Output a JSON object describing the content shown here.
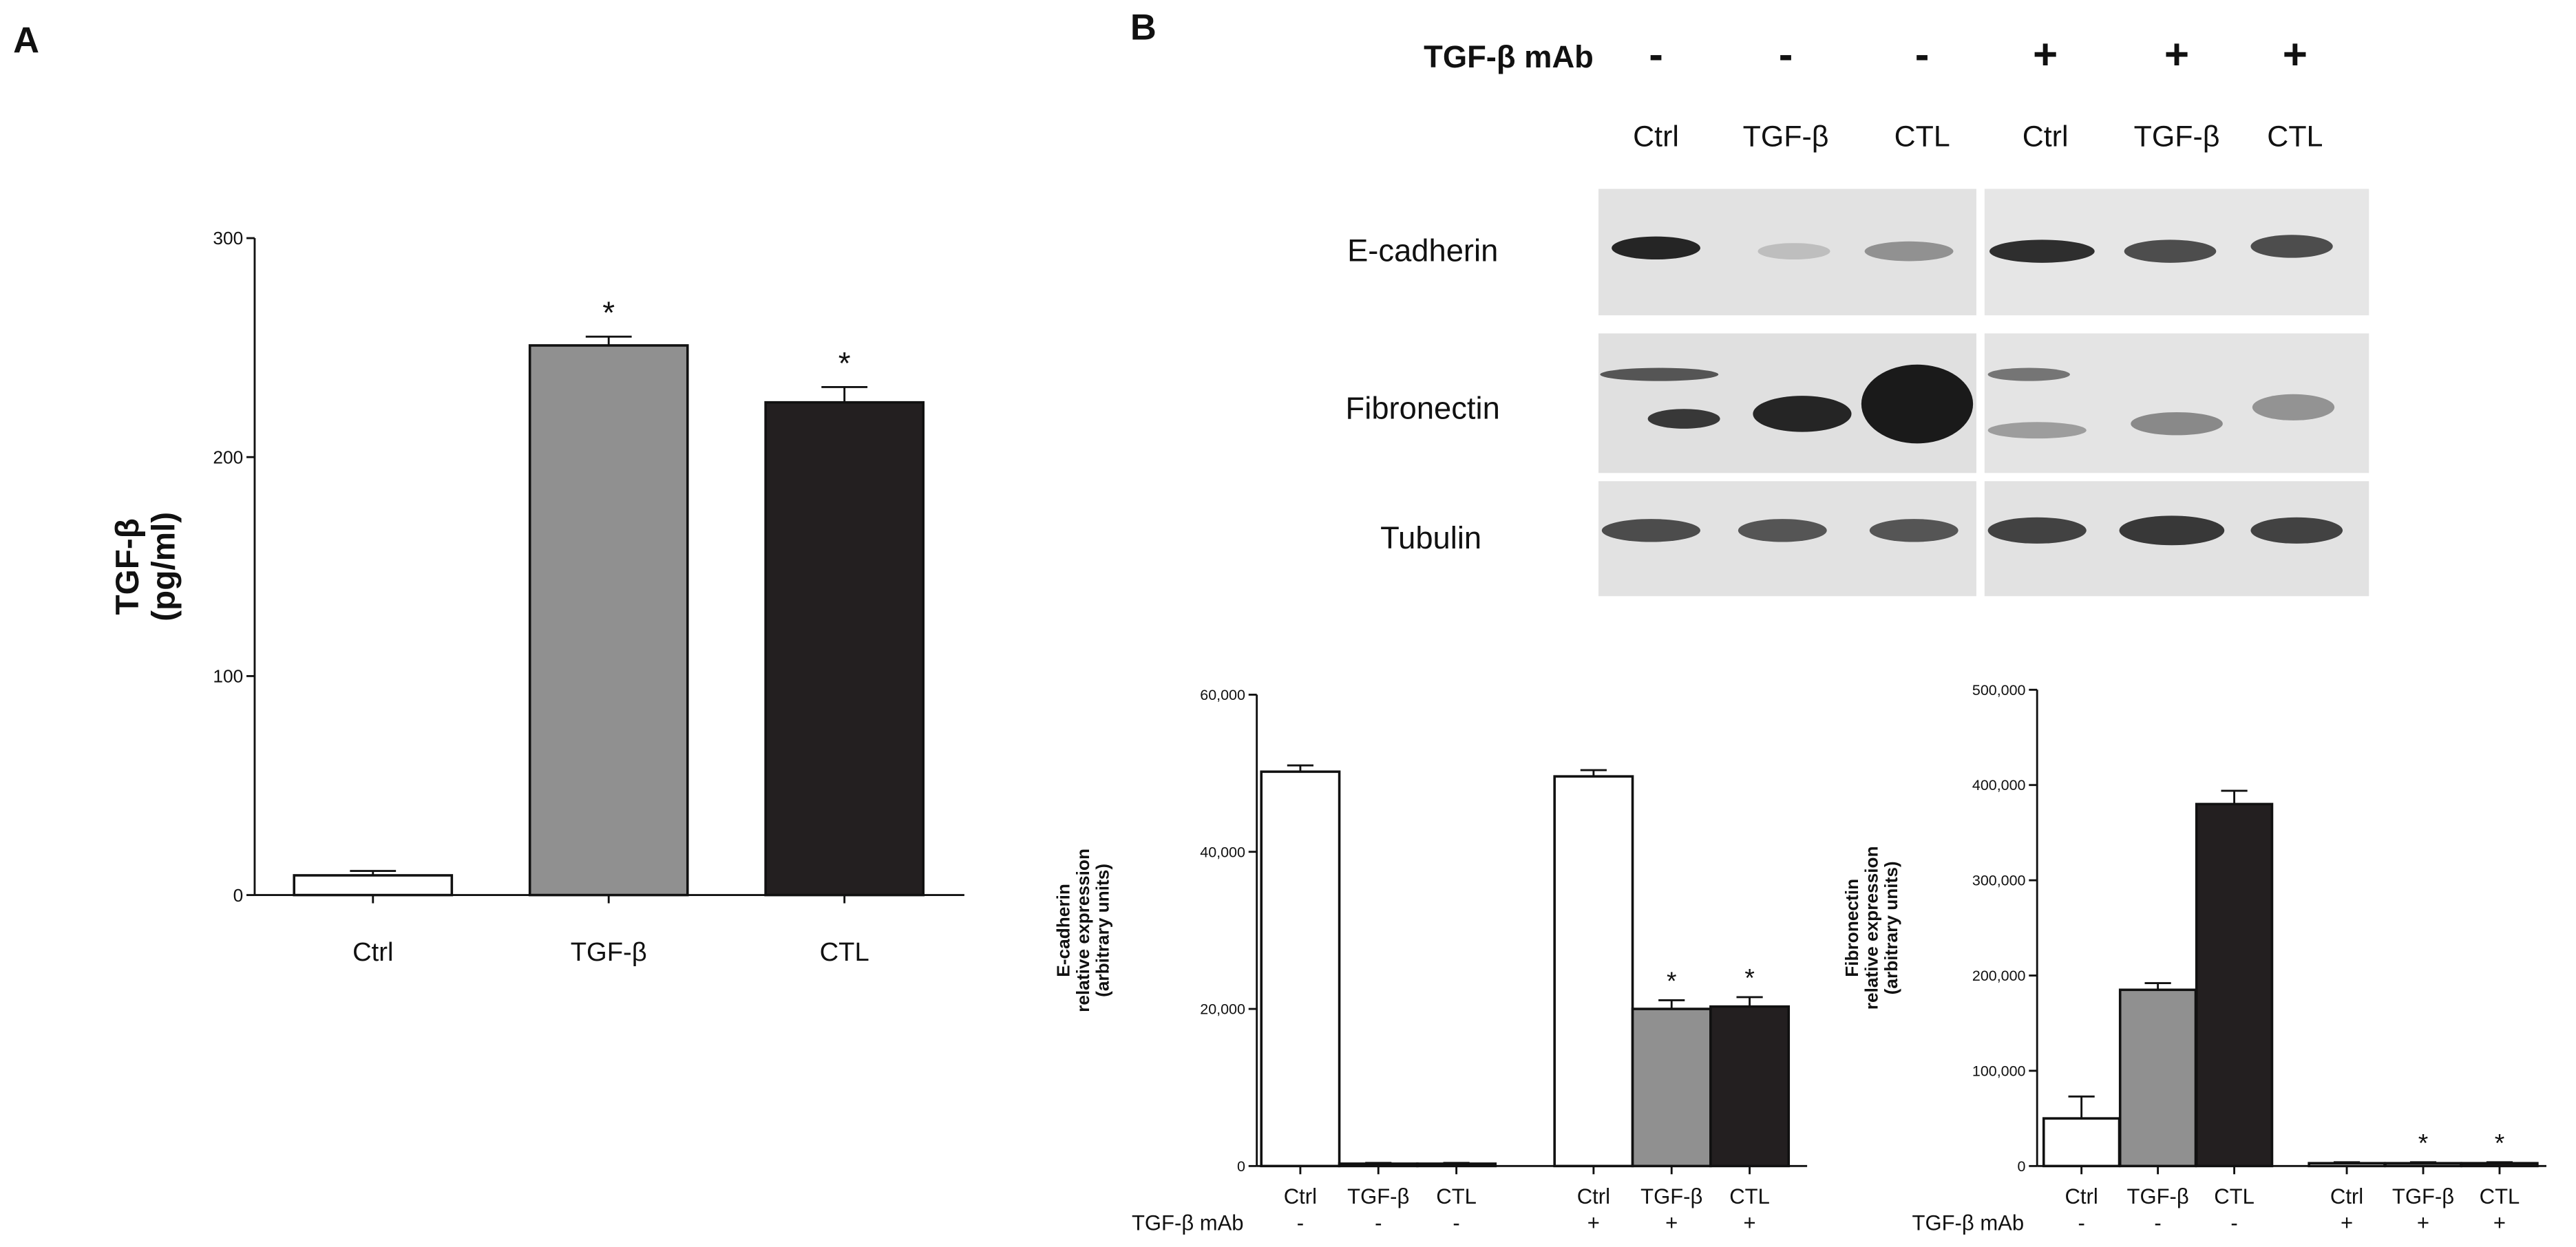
{
  "panel_labels": [
    "A",
    "B"
  ],
  "blot": {
    "row_header": "TGF-β mAb",
    "mab": [
      "-",
      "-",
      "-",
      "+",
      "+",
      "+"
    ],
    "lanes": [
      "Ctrl",
      "TGF-β",
      "CTL",
      "Ctrl",
      "TGF-β",
      "CTL"
    ],
    "proteins": [
      "E-cadherin",
      "Fibronectin",
      "Tubulin"
    ]
  },
  "chart_data": [
    {
      "type": "bar",
      "ylabel": [
        "TGF-β",
        "(pg/ml)"
      ],
      "categories": [
        "Ctrl",
        "TGF-β",
        "CTL"
      ],
      "values": [
        9,
        251,
        225
      ],
      "errors": [
        2,
        4,
        7
      ],
      "colors": [
        "#ffffff",
        "#909090",
        "#231f20"
      ],
      "annotations": [
        null,
        "*",
        "*"
      ],
      "ylim": [
        0,
        300
      ],
      "yticks": [
        0,
        100,
        200,
        300
      ]
    },
    {
      "type": "bar",
      "ylabel": [
        "E-cadherin",
        "relative expression",
        "(arbitrary units)"
      ],
      "categories": [
        "Ctrl",
        "TGF-β",
        "CTL",
        "Ctrl",
        "TGF-β",
        "CTL"
      ],
      "row_label": "TGF-β mAb",
      "row_values": [
        "-",
        "-",
        "-",
        "+",
        "+",
        "+"
      ],
      "values": [
        50200,
        300,
        300,
        49600,
        20000,
        20300
      ],
      "errors": [
        800,
        100,
        100,
        800,
        1100,
        1200
      ],
      "colors": [
        "#ffffff",
        "#909090",
        "#231f20",
        "#ffffff",
        "#909090",
        "#231f20"
      ],
      "annotations": [
        null,
        null,
        null,
        null,
        "*",
        "*"
      ],
      "ylim": [
        0,
        60000
      ],
      "yticks": [
        0,
        {
          "value": 20000,
          "label": "20,000"
        },
        {
          "value": 40000,
          "label": "40,000"
        },
        {
          "value": 60000,
          "label": "60,000"
        }
      ]
    },
    {
      "type": "bar",
      "ylabel": [
        "Fibronectin",
        "relative expression",
        "(arbitrary units)"
      ],
      "categories": [
        "Ctrl",
        "TGF-β",
        "CTL",
        "Ctrl",
        "TGF-β",
        "CTL"
      ],
      "row_label": "TGF-β mAb",
      "row_values": [
        "-",
        "-",
        "-",
        "+",
        "+",
        "+"
      ],
      "values": [
        50000,
        185000,
        380000,
        3000,
        3000,
        3000
      ],
      "errors": [
        23000,
        7000,
        14000,
        1000,
        1000,
        1000
      ],
      "colors": [
        "#ffffff",
        "#909090",
        "#231f20",
        "#ffffff",
        "#909090",
        "#231f20"
      ],
      "annotations": [
        null,
        null,
        null,
        null,
        "*",
        "*"
      ],
      "ylim": [
        0,
        500000
      ],
      "yticks": [
        0,
        {
          "value": 100000,
          "label": "100,000"
        },
        {
          "value": 200000,
          "label": "200,000"
        },
        {
          "value": 300000,
          "label": "300,000"
        },
        {
          "value": 400000,
          "label": "400,000"
        },
        {
          "value": 500000,
          "label": "500,000"
        }
      ]
    }
  ]
}
